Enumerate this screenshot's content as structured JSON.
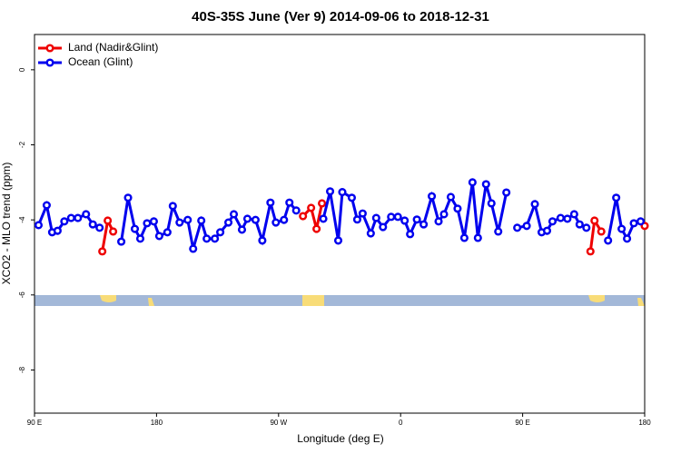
{
  "chart_data": {
    "type": "line",
    "title": "40S-35S June (Ver 9)   2014-09-06 to 2018-12-31",
    "x_label": "Longitude (deg E)",
    "y_label": "XCO2 - MLO trend (ppm)",
    "xlim": [
      90,
      540
    ],
    "ylim": [
      -9.15,
      0.94
    ],
    "xticks": [
      {
        "value": 90,
        "label": "90 E"
      },
      {
        "value": 180,
        "label": "180"
      },
      {
        "value": 270,
        "label": "90 W"
      },
      {
        "value": 360,
        "label": "0"
      },
      {
        "value": 450,
        "label": "90 E"
      },
      {
        "value": 540,
        "label": "180"
      }
    ],
    "yticks": [
      -8,
      -6,
      -4,
      -2,
      0
    ],
    "legend": "top-left",
    "series": [
      {
        "name": "Land (Nadir&Glint)",
        "color": "#ee0000",
        "x": [
          140,
          144,
          148,
          220,
          288,
          294,
          298,
          302,
          420,
          500,
          503,
          508,
          520,
          540
        ],
        "values": [
          -4.84,
          -4.02,
          -4.31,
          null,
          -3.9,
          -3.68,
          -4.24,
          -3.56,
          null,
          -4.84,
          -4.02,
          -4.31,
          null,
          -4.16
        ]
      },
      {
        "name": "Ocean (Glint)",
        "color": "#0000ee",
        "x": [
          93,
          99,
          103,
          107,
          112,
          117,
          122,
          128,
          133,
          138,
          146,
          154,
          159,
          164,
          168,
          173,
          178,
          182,
          188,
          192,
          197,
          203,
          207,
          213,
          217,
          223,
          227,
          233,
          237,
          243,
          247,
          253,
          258,
          264,
          268,
          274,
          278,
          283,
          293,
          303,
          308,
          314,
          317,
          324,
          328,
          332,
          338,
          342,
          347,
          353,
          358,
          363,
          367,
          372,
          377,
          383,
          388,
          392,
          397,
          402,
          407,
          413,
          417,
          423,
          427,
          432,
          438,
          442,
          446,
          453,
          459,
          464,
          468,
          472,
          478,
          483,
          488,
          492,
          497,
          505,
          513,
          519,
          523,
          527,
          532,
          537
        ],
        "values": [
          -4.14,
          -3.61,
          -4.33,
          -4.29,
          -4.04,
          -3.95,
          -3.95,
          -3.85,
          -4.12,
          -4.21,
          null,
          -4.58,
          -3.41,
          -4.24,
          -4.5,
          -4.09,
          -4.04,
          -4.43,
          -4.33,
          -3.63,
          -4.07,
          -4.0,
          -4.77,
          -4.02,
          -4.5,
          -4.5,
          -4.33,
          -4.07,
          -3.85,
          -4.26,
          -3.97,
          -4.0,
          -4.55,
          -3.54,
          -4.07,
          -4.0,
          -3.54,
          -3.75,
          null,
          -3.97,
          -3.24,
          -4.55,
          -3.26,
          -3.41,
          -3.99,
          -3.83,
          -4.36,
          -3.95,
          -4.19,
          -3.92,
          -3.92,
          -4.02,
          -4.38,
          -3.99,
          -4.12,
          -3.37,
          -4.04,
          -3.85,
          -3.39,
          -3.7,
          -4.48,
          -3.0,
          -4.48,
          -3.05,
          -3.56,
          -4.31,
          -3.27,
          null,
          -4.21,
          -4.16,
          -3.58,
          -4.33,
          -4.29,
          -4.04,
          -3.95,
          -3.97,
          -3.85,
          -4.12,
          -4.21,
          null,
          -4.55,
          -3.41,
          -4.24,
          -4.5,
          -4.09,
          -4.04
        ]
      }
    ]
  }
}
